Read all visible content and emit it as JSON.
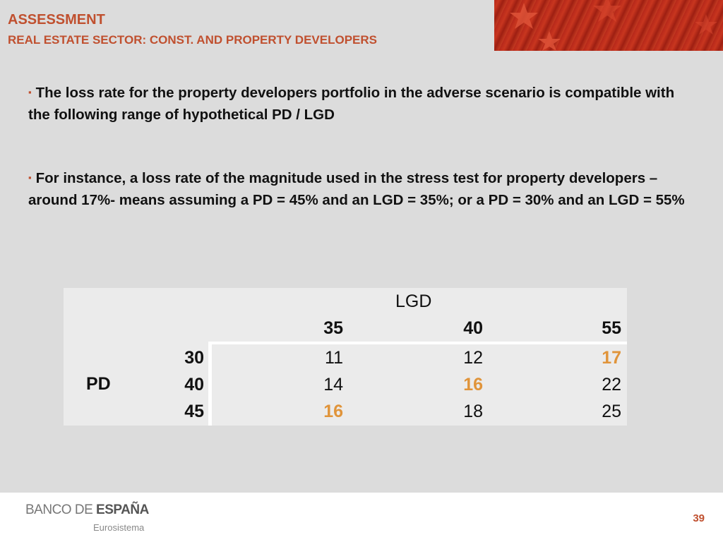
{
  "header": {
    "title": "ASSESSMENT",
    "subtitle": "REAL ESTATE SECTOR: CONST. AND PROPERTY DEVELOPERS"
  },
  "bullets": [
    "The loss rate for the property developers portfolio in the adverse scenario is compatible with the following range of hypothetical PD / LGD",
    "For instance, a loss rate of the magnitude used in the stress test for property developers –around 17%- means assuming a PD = 45% and an LGD = 35%; or a PD = 30% and an LGD = 55%"
  ],
  "bullet_marker": "▪",
  "table": {
    "col_group_label": "LGD",
    "row_group_label": "PD",
    "columns": [
      "35",
      "40",
      "55"
    ],
    "rows": [
      {
        "label": "30",
        "values": [
          "11",
          "12",
          "17"
        ],
        "highlight": [
          false,
          false,
          true
        ]
      },
      {
        "label": "40",
        "values": [
          "14",
          "16",
          "22"
        ],
        "highlight": [
          false,
          true,
          false
        ]
      },
      {
        "label": "45",
        "values": [
          "16",
          "18",
          "25"
        ],
        "highlight": [
          true,
          false,
          false
        ]
      }
    ],
    "highlight_color": "#e0943a"
  },
  "footer": {
    "logo_part1": "BANCO DE ",
    "logo_part2": "ESPAÑA",
    "logo_sub": "Eurosistema",
    "page_number": "39"
  },
  "colors": {
    "accent": "#c0502f",
    "background": "#dcdcdc",
    "table_background": "#ebebeb"
  }
}
